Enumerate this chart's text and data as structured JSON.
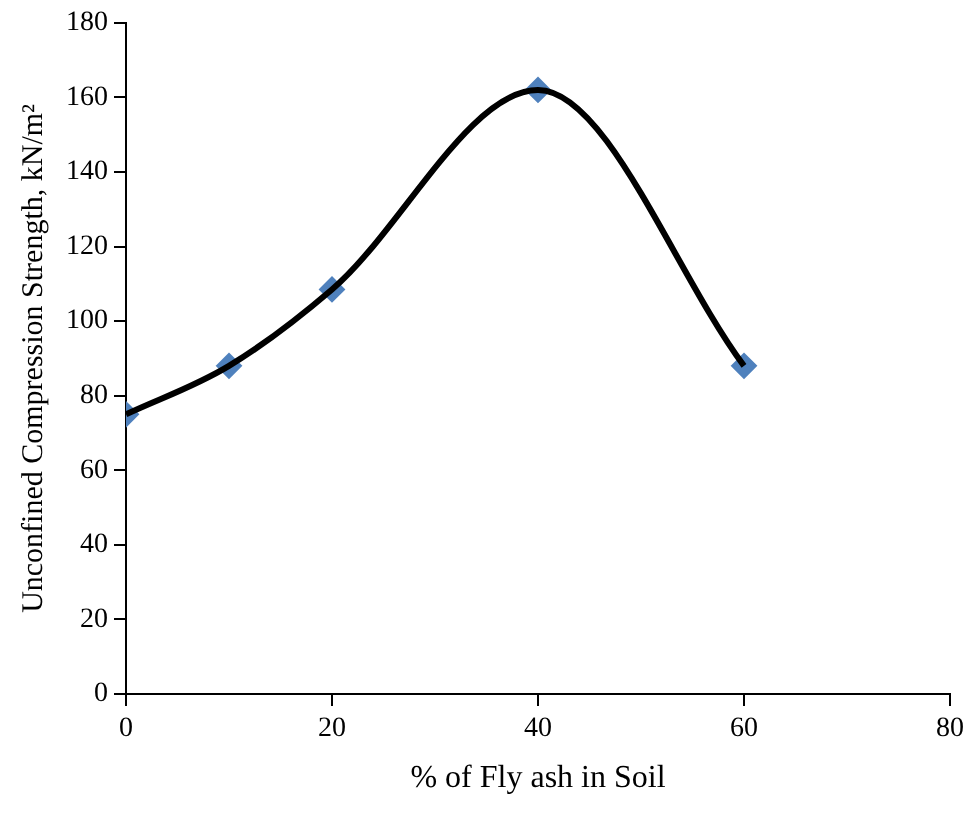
{
  "chart_data": {
    "type": "line",
    "xlabel": "% of Fly ash in Soil",
    "ylabel": "Unconfined Compression Strength, kN/m²",
    "x": [
      0,
      10,
      20,
      40,
      60
    ],
    "series": [
      {
        "color": "#000000",
        "marker": "none",
        "values": [
          75,
          88,
          108.5,
          162,
          88
        ]
      },
      {
        "type": "scatter",
        "color": "#4f81bd",
        "marker": "diamond",
        "values": [
          75,
          88,
          108.5,
          162,
          88
        ]
      }
    ],
    "xlim": [
      0,
      80
    ],
    "xticks": [
      0,
      20,
      40,
      60,
      80
    ],
    "ylim": [
      0,
      180
    ],
    "yticks": [
      0,
      20,
      40,
      60,
      80,
      100,
      120,
      140,
      160,
      180
    ],
    "grid": false,
    "legend": false
  }
}
